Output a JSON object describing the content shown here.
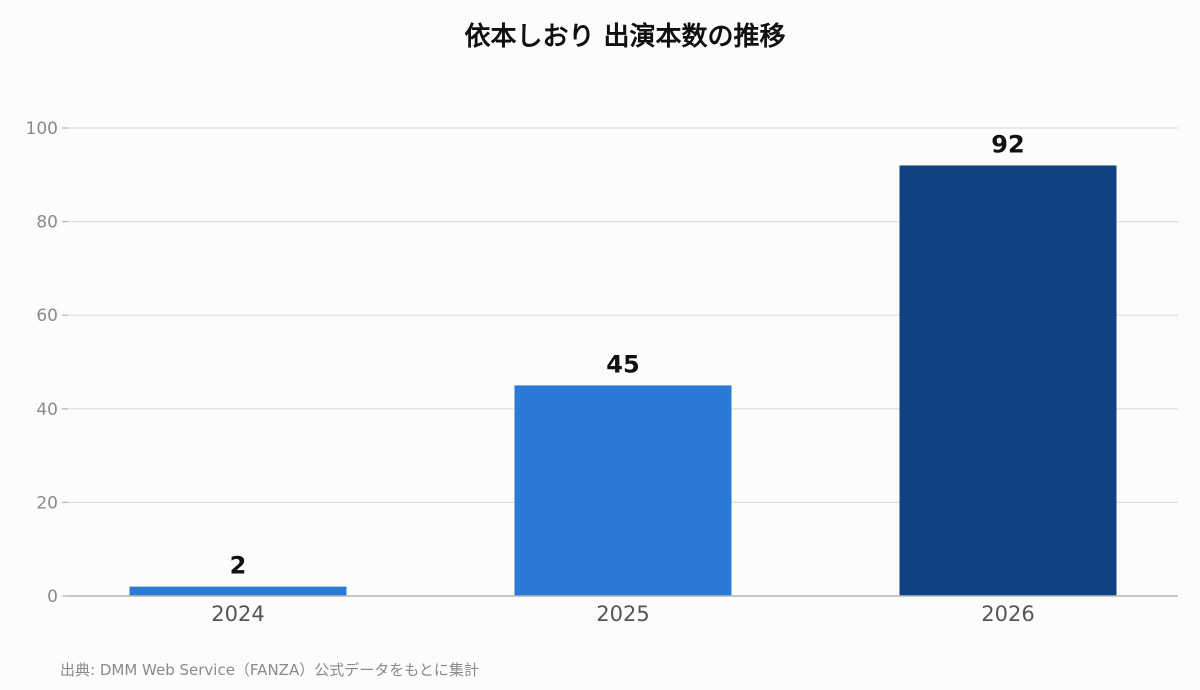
{
  "chart_data": {
    "type": "bar",
    "title": "依本しおり 出演本数の推移",
    "categories": [
      "2024",
      "2025",
      "2026"
    ],
    "values": [
      2,
      45,
      92
    ],
    "bar_colors": [
      "#2b7ad6",
      "#2b7ad6",
      "#104183"
    ],
    "ylim": [
      0,
      100
    ],
    "yticks": [
      0,
      20,
      40,
      60,
      80,
      100
    ],
    "grid": true,
    "legend": "none"
  },
  "source_note": "出典: DMM Web Service（FANZA）公式データをもとに集計"
}
